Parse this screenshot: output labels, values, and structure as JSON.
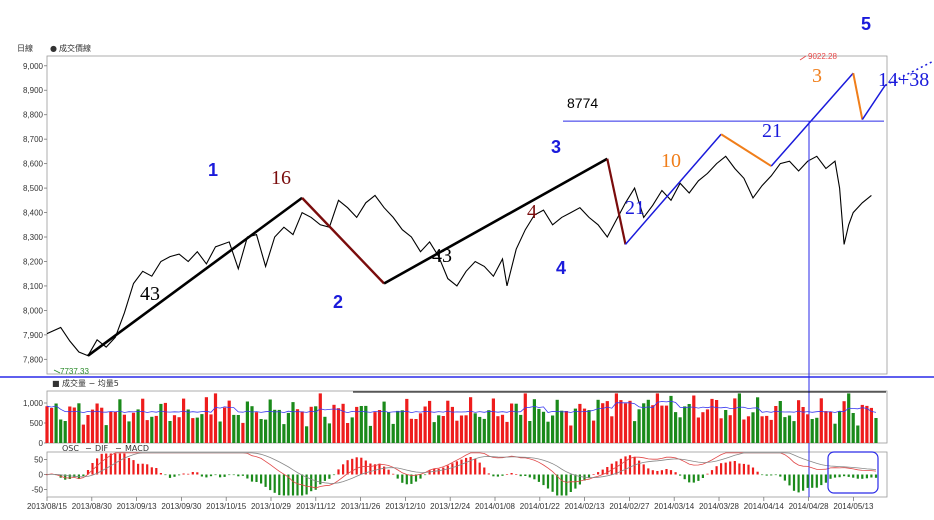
{
  "legends": {
    "price": [
      "日線",
      "成交價線"
    ],
    "volume": "成交量 − 均量5",
    "macd": [
      "OSC",
      "DIF",
      "MACD"
    ]
  },
  "colors": {
    "price_line": "#000000",
    "wave_black": "#000000",
    "wave_brown": "#7a0c0c",
    "wave_blue": "#1a1adb",
    "wave_orange": "#f07e1a",
    "vol_up": "#ee1c1c",
    "vol_down": "#1a8a1a",
    "vol_ma": "#3a3af0",
    "dif": "#e04848",
    "macd": "#888888",
    "separator": "#2a2ae8",
    "box": "#2a2ae8",
    "high_label": "#e84848",
    "low_label": "#2a8a2a"
  },
  "chart_data": [
    {
      "type": "line",
      "panel": "price",
      "y_ticks": [
        "7,800",
        "7,900",
        "8,000",
        "8,100",
        "8,200",
        "8,300",
        "8,400",
        "8,500",
        "8,600",
        "8,700",
        "8,800",
        "8,900",
        "9,000"
      ],
      "ylim": [
        7740,
        9040
      ],
      "x_labels": [
        "2013/08/15",
        "2013/08/30",
        "2013/09/13",
        "2013/09/30",
        "2013/10/15",
        "2013/10/29",
        "2013/11/12",
        "2013/11/26",
        "2013/12/10",
        "2013/12/24",
        "2014/01/08",
        "2014/01/22",
        "2014/02/13",
        "2014/02/27",
        "2014/03/14",
        "2014/03/28",
        "2014/04/14",
        "2014/04/28",
        "2014/05/13"
      ],
      "sessions": 183,
      "closes": [
        7900,
        7920,
        7880,
        7830,
        7820,
        7860,
        7890,
        7815,
        7900,
        8000,
        8080,
        8100,
        8160,
        8150,
        8190,
        8220,
        8210,
        8240,
        8180,
        8230,
        8200,
        8280,
        8290,
        8250,
        8300,
        8210,
        8260,
        8220,
        8300,
        8330,
        8360,
        8340,
        8400,
        8380,
        8300,
        8350,
        8400,
        8420,
        8360,
        8410,
        8460,
        8440,
        8420,
        8460,
        8400,
        8370,
        8410,
        8380,
        8320,
        8290,
        8260,
        8230,
        8220,
        8200,
        8100,
        8150,
        8180,
        8140,
        8170,
        8130,
        8220,
        8200,
        8190,
        8240,
        8310,
        8350,
        8380,
        8370,
        8400,
        8390,
        8350,
        8340,
        8380,
        8420,
        8360,
        8340,
        8300,
        8250,
        8220,
        8240,
        8260,
        8300,
        8330,
        8370,
        8420,
        8400,
        8380,
        8420,
        8460,
        8500,
        8530,
        8560,
        8600,
        8620,
        8590,
        8560,
        8520,
        8470,
        8500,
        8540,
        8570,
        8600,
        8620,
        8580,
        8560,
        8600,
        8570,
        8550,
        8520,
        8480,
        8440,
        8400,
        8330,
        8280,
        8360,
        8440,
        8410,
        8440,
        8460,
        8450,
        8500,
        8490,
        8520,
        8550,
        8600,
        8620,
        8660,
        8700,
        8720,
        8690,
        8650,
        8640,
        8620,
        8650,
        8670,
        8710,
        8740,
        8710,
        8690,
        8650,
        8620,
        8600,
        8640,
        8680,
        8720,
        8780,
        8810,
        8860,
        8890,
        8880,
        8920,
        8940,
        8900,
        8950,
        8960,
        8930,
        8890,
        8900,
        8930,
        8960,
        8980,
        8940,
        8880,
        8830,
        8770,
        8800,
        8850,
        8880,
        8830,
        8820,
        8870,
        8880,
        8930,
        8900,
        8890,
        8910,
        8880,
        8870,
        8860,
        8870,
        8880,
        8890,
        8870
      ],
      "points": [
        {
          "x": 0,
          "y": 7905
        },
        {
          "x": 3,
          "y": 7930
        },
        {
          "x": 5,
          "y": 7875
        },
        {
          "x": 7,
          "y": 7830
        },
        {
          "x": 9,
          "y": 7815
        },
        {
          "x": 11,
          "y": 7880
        },
        {
          "x": 13,
          "y": 7850
        },
        {
          "x": 15,
          "y": 7890
        },
        {
          "x": 17,
          "y": 7990
        },
        {
          "x": 19,
          "y": 8110
        },
        {
          "x": 21,
          "y": 8160
        },
        {
          "x": 23,
          "y": 8140
        },
        {
          "x": 25,
          "y": 8200
        },
        {
          "x": 27,
          "y": 8220
        },
        {
          "x": 29,
          "y": 8230
        },
        {
          "x": 31,
          "y": 8200
        },
        {
          "x": 33,
          "y": 8240
        },
        {
          "x": 35,
          "y": 8190
        },
        {
          "x": 37,
          "y": 8260
        },
        {
          "x": 40,
          "y": 8280
        },
        {
          "x": 42,
          "y": 8170
        },
        {
          "x": 44,
          "y": 8300
        },
        {
          "x": 46,
          "y": 8310
        },
        {
          "x": 48,
          "y": 8180
        },
        {
          "x": 50,
          "y": 8300
        },
        {
          "x": 52,
          "y": 8340
        },
        {
          "x": 54,
          "y": 8310
        },
        {
          "x": 56,
          "y": 8400
        },
        {
          "x": 58,
          "y": 8380
        },
        {
          "x": 60,
          "y": 8350
        },
        {
          "x": 62,
          "y": 8340
        },
        {
          "x": 64,
          "y": 8450
        },
        {
          "x": 66,
          "y": 8420
        },
        {
          "x": 68,
          "y": 8380
        },
        {
          "x": 70,
          "y": 8440
        },
        {
          "x": 72,
          "y": 8470
        },
        {
          "x": 74,
          "y": 8420
        },
        {
          "x": 76,
          "y": 8380
        },
        {
          "x": 78,
          "y": 8330
        },
        {
          "x": 80,
          "y": 8300
        },
        {
          "x": 82,
          "y": 8240
        },
        {
          "x": 84,
          "y": 8280
        },
        {
          "x": 86,
          "y": 8220
        },
        {
          "x": 88,
          "y": 8130
        },
        {
          "x": 90,
          "y": 8100
        },
        {
          "x": 92,
          "y": 8160
        },
        {
          "x": 94,
          "y": 8200
        },
        {
          "x": 96,
          "y": 8180
        },
        {
          "x": 98,
          "y": 8140
        },
        {
          "x": 100,
          "y": 8210
        },
        {
          "x": 101,
          "y": 8100
        },
        {
          "x": 103,
          "y": 8250
        },
        {
          "x": 105,
          "y": 8330
        },
        {
          "x": 107,
          "y": 8390
        },
        {
          "x": 109,
          "y": 8410
        },
        {
          "x": 111,
          "y": 8350
        },
        {
          "x": 113,
          "y": 8380
        },
        {
          "x": 115,
          "y": 8400
        },
        {
          "x": 117,
          "y": 8420
        },
        {
          "x": 119,
          "y": 8380
        },
        {
          "x": 121,
          "y": 8350
        },
        {
          "x": 123,
          "y": 8300
        },
        {
          "x": 125,
          "y": 8370
        },
        {
          "x": 127,
          "y": 8440
        },
        {
          "x": 129,
          "y": 8500
        },
        {
          "x": 131,
          "y": 8380
        },
        {
          "x": 133,
          "y": 8430
        },
        {
          "x": 135,
          "y": 8490
        },
        {
          "x": 137,
          "y": 8450
        },
        {
          "x": 139,
          "y": 8520
        },
        {
          "x": 141,
          "y": 8480
        },
        {
          "x": 143,
          "y": 8530
        },
        {
          "x": 145,
          "y": 8560
        },
        {
          "x": 147,
          "y": 8600
        },
        {
          "x": 149,
          "y": 8630
        },
        {
          "x": 151,
          "y": 8580
        },
        {
          "x": 153,
          "y": 8540
        },
        {
          "x": 155,
          "y": 8460
        },
        {
          "x": 157,
          "y": 8510
        },
        {
          "x": 159,
          "y": 8550
        },
        {
          "x": 161,
          "y": 8600
        },
        {
          "x": 163,
          "y": 8610
        },
        {
          "x": 165,
          "y": 8570
        },
        {
          "x": 167,
          "y": 8610
        },
        {
          "x": 169,
          "y": 8630
        },
        {
          "x": 171,
          "y": 8580
        },
        {
          "x": 173,
          "y": 8610
        },
        {
          "x": 174,
          "y": 8500
        },
        {
          "x": 175,
          "y": 8270
        },
        {
          "x": 176,
          "y": 8350
        },
        {
          "x": 177,
          "y": 8400
        },
        {
          "x": 179,
          "y": 8440
        },
        {
          "x": 181,
          "y": 8470
        }
      ]
    },
    {
      "type": "bar",
      "panel": "volume",
      "y_ticks": [
        "0",
        "500",
        "1,000"
      ],
      "ylim": [
        0,
        1300
      ],
      "bars": 183
    },
    {
      "type": "line",
      "panel": "macd",
      "y_ticks": [
        "50",
        "0",
        "-50"
      ],
      "ylim": [
        -75,
        75
      ],
      "series": [
        {
          "name": "DIF",
          "values": []
        },
        {
          "name": "MACD",
          "values": []
        }
      ]
    }
  ],
  "annotations": {
    "high_value": "9022.28",
    "low_value": "7737.33",
    "h_level": "8774",
    "blue_labels": [
      "1",
      "2",
      "3",
      "4",
      "5"
    ],
    "serif_counts": {
      "a": "43",
      "b": "16",
      "c": "43",
      "d": "4",
      "e": "21",
      "f": "10",
      "g": "21",
      "h": "3",
      "i": "14+38"
    }
  }
}
